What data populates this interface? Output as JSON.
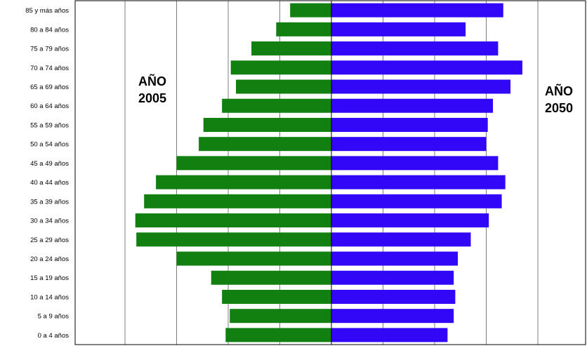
{
  "chart_data": {
    "type": "bar",
    "orientation": "horizontal",
    "layout": "population-pyramid",
    "categories": [
      "85 y más años",
      "80 a 84 años",
      "75 a 79 años",
      "70 a 74 años",
      "65 a 69 años",
      "60 a 64 años",
      "55 a 59 años",
      "50 a 54 años",
      "45 a 49 años",
      "40 a 44 años",
      "35 a 39 años",
      "30 a 34 años",
      "25 a 29 años",
      "20 a 24 años",
      "15 a 19 años",
      "10 a 14 años",
      "5 a 9 años",
      "0 a 4 años"
    ],
    "series": [
      {
        "side": "left",
        "values": [
          0.8,
          1.07,
          1.55,
          1.95,
          1.85,
          2.12,
          2.48,
          2.57,
          3.0,
          3.4,
          3.63,
          3.8,
          3.78,
          3.0,
          2.33,
          2.12,
          1.97,
          2.05
        ]
      },
      {
        "side": "right",
        "values": [
          3.33,
          2.6,
          3.23,
          3.7,
          3.47,
          3.13,
          3.03,
          3.0,
          3.23,
          3.37,
          3.3,
          3.05,
          2.7,
          2.45,
          2.37,
          2.4,
          2.37,
          2.25
        ]
      }
    ],
    "xlim": [
      -4,
      4
    ],
    "grid": true,
    "colors": {
      "left": "#118011",
      "right": "#3206F7",
      "grid": "#7f7f7f",
      "frame": "#000000"
    }
  },
  "annotations": {
    "left_year_line1": "AÑO",
    "left_year_line2": "2005",
    "right_year_line1": "AÑO",
    "right_year_line2": "2050"
  }
}
